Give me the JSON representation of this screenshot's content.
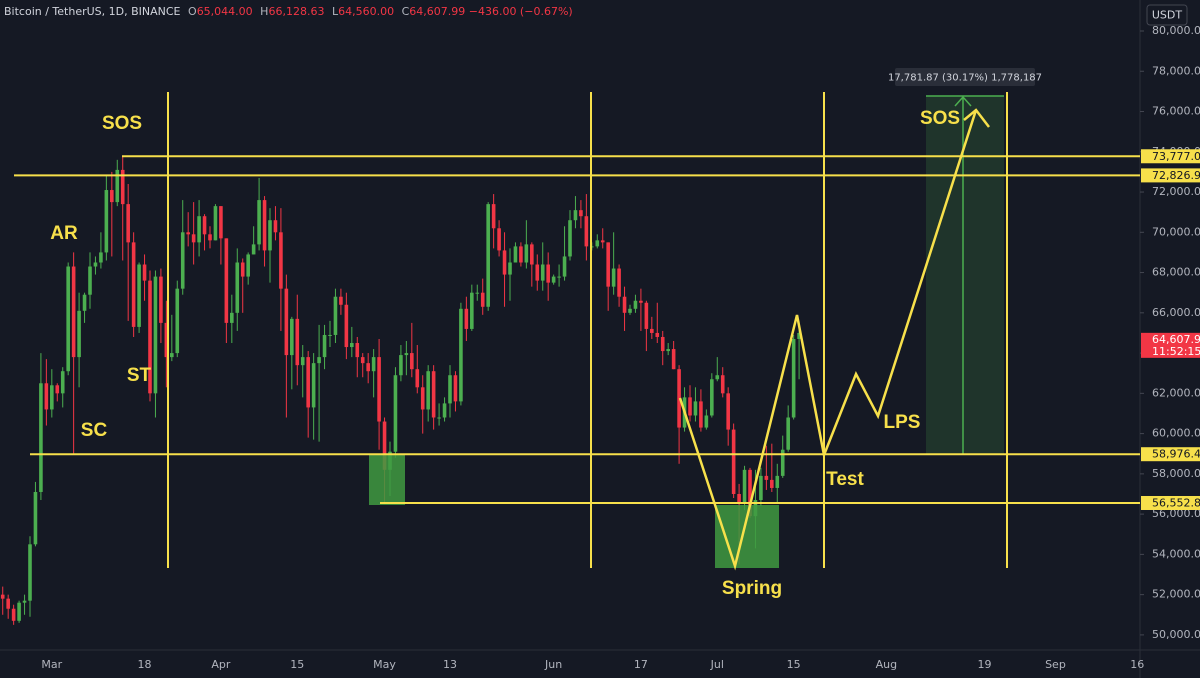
{
  "header": {
    "symbol": "Bitcoin / TetherUS, 1D, BINANCE",
    "ohlc": [
      {
        "key": "O",
        "value": "65,044.00"
      },
      {
        "key": "H",
        "value": "66,128.63"
      },
      {
        "key": "L",
        "value": "64,560.00"
      },
      {
        "key": "C",
        "value": "64,607.99"
      }
    ],
    "change": "−436.00 (−0.67%)",
    "currency": "USDT"
  },
  "chart_data": {
    "type": "candlestick",
    "up_color": "#4caf50",
    "down_color": "#f23645",
    "categories": [
      null,
      null,
      null,
      null,
      null,
      null,
      null,
      null,
      null,
      "Mar",
      null,
      null,
      null,
      null,
      null,
      null,
      null,
      null,
      null,
      null,
      null,
      null,
      null,
      null,
      null,
      null,
      "18",
      null,
      null,
      null,
      null,
      null,
      null,
      null,
      null,
      null,
      null,
      null,
      null,
      null,
      "Apr",
      null,
      null,
      null,
      null,
      null,
      null,
      null,
      null,
      null,
      null,
      null,
      null,
      null,
      "15",
      null,
      null,
      null,
      null,
      null,
      null,
      null,
      null,
      null,
      null,
      null,
      null,
      null,
      null,
      null,
      "May",
      null,
      null,
      null,
      null,
      null,
      null,
      null,
      null,
      null,
      null,
      null,
      "13",
      null,
      null,
      null,
      null,
      null,
      null,
      null,
      null,
      null,
      null,
      null,
      null,
      null,
      null,
      null,
      null,
      null,
      null,
      "Jun",
      null,
      null,
      null,
      null,
      null,
      null,
      null,
      null,
      null,
      null,
      null,
      null,
      null,
      null,
      null,
      "17",
      null,
      null,
      null,
      null,
      null,
      null,
      null,
      null,
      null,
      null,
      null,
      null,
      null,
      "Jul",
      null,
      null,
      null,
      null,
      null,
      null,
      null,
      null,
      null,
      null,
      null,
      null,
      null,
      "15",
      null,
      null,
      null,
      null,
      null,
      null,
      null,
      null,
      null,
      null,
      null,
      null,
      null,
      null,
      null,
      null,
      "Aug",
      null,
      null,
      null,
      null,
      null,
      null,
      null,
      null,
      null,
      null,
      null,
      null,
      null,
      null,
      null,
      null,
      null,
      "19",
      null,
      null,
      null,
      null,
      null,
      null,
      null,
      null,
      null,
      null,
      null,
      null,
      "Sep",
      null,
      null,
      null,
      null,
      null,
      null,
      null,
      null,
      null,
      null,
      null,
      null,
      null,
      null,
      "16"
    ],
    "open": [
      52000,
      51800,
      51300,
      50700,
      51600,
      51700,
      54500,
      57100,
      62500,
      61200,
      62400,
      62000,
      63100,
      68300,
      63800,
      66100,
      66900,
      68300,
      68500,
      69000,
      72100,
      71500,
      73100,
      71400,
      69500,
      65300,
      68400,
      67600,
      62000,
      67800,
      65500,
      63800,
      64000,
      67200,
      70000,
      69900,
      69500,
      70800,
      69900,
      69600,
      71300,
      69700,
      65500,
      66000,
      68500,
      67800,
      68900,
      69400,
      71600,
      69100,
      70600,
      70000,
      67200,
      63900,
      65700,
      63400,
      63800,
      61300,
      63500,
      63800,
      64900,
      64900,
      66800,
      66400,
      64300,
      64500,
      63800,
      63500,
      63100,
      63800,
      60600,
      58200,
      59100,
      62900,
      63900,
      64000,
      63200,
      62300,
      61200,
      63100,
      60800,
      60800,
      61500,
      62900,
      61600,
      66200,
      65200,
      67000,
      67000,
      66300,
      71400,
      70200,
      69100,
      67900,
      68500,
      69300,
      68500,
      69400,
      68400,
      67600,
      68400,
      67500,
      67800,
      67800,
      68800,
      70600,
      71100,
      70800,
      69300,
      69300,
      69600,
      69500,
      67300,
      68200,
      66800,
      66000,
      66200,
      66600,
      66500,
      65200,
      65000,
      64800,
      64100,
      64200,
      63200,
      60300,
      61800,
      60900,
      61600,
      60300,
      60900,
      62700,
      62900,
      62000,
      60200,
      57000,
      56600,
      58200,
      55900,
      56700,
      57900,
      57700,
      57300,
      57900,
      59200,
      60800,
      64700,
      null,
      null,
      null,
      null,
      null,
      null,
      null,
      null,
      null,
      null,
      null,
      null,
      null,
      null,
      null,
      null,
      null,
      null,
      null,
      null,
      null,
      null,
      null,
      null,
      null,
      null,
      null,
      null,
      null,
      null,
      null,
      null,
      null,
      null,
      null,
      null,
      null,
      null,
      null,
      null,
      null,
      null,
      null,
      null,
      null,
      null,
      null,
      null,
      null,
      null,
      null,
      null,
      null,
      null,
      null,
      null,
      null,
      null,
      null,
      null,
      null,
      null
    ],
    "high": [
      52400,
      52000,
      51500,
      51700,
      52000,
      54900,
      57600,
      64000,
      63700,
      63200,
      62500,
      63300,
      68500,
      69000,
      67000,
      67000,
      69000,
      68800,
      70000,
      72800,
      73000,
      73600,
      73800,
      72400,
      70000,
      68500,
      68900,
      68100,
      68100,
      68200,
      66600,
      65900,
      67600,
      71600,
      71000,
      71500,
      71600,
      70900,
      70300,
      71400,
      71300,
      69700,
      66900,
      69200,
      68700,
      69000,
      70300,
      72700,
      71800,
      71200,
      71300,
      71200,
      67900,
      65800,
      66900,
      64400,
      64100,
      64000,
      65400,
      65400,
      65600,
      67200,
      67200,
      67000,
      65300,
      64800,
      64000,
      64000,
      64200,
      64700,
      60800,
      59600,
      63300,
      64400,
      64600,
      65500,
      64400,
      62900,
      63400,
      63400,
      61500,
      61800,
      63400,
      63100,
      66500,
      66800,
      67400,
      67400,
      67700,
      71500,
      71900,
      70600,
      70000,
      69200,
      69500,
      69500,
      70600,
      69500,
      68900,
      69500,
      69000,
      67900,
      68400,
      70300,
      71100,
      71800,
      71600,
      71900,
      69500,
      69900,
      70200,
      69500,
      70000,
      68400,
      67300,
      66400,
      66900,
      67200,
      66600,
      65800,
      66500,
      65100,
      64500,
      64600,
      63400,
      62300,
      62400,
      62300,
      62200,
      61200,
      63000,
      63800,
      63300,
      62300,
      60500,
      57500,
      58400,
      58300,
      58200,
      58300,
      59400,
      59500,
      58500,
      59900,
      61400,
      64900,
      65400,
      null,
      null,
      null,
      null,
      null,
      null,
      null,
      null,
      null,
      null,
      null,
      null,
      null,
      null,
      null,
      null,
      null,
      null,
      null,
      null,
      null,
      null,
      null,
      null,
      null,
      null,
      null,
      null,
      null,
      null,
      null,
      null,
      null,
      null,
      null,
      null,
      null,
      null,
      null,
      null,
      null,
      null,
      null,
      null,
      null,
      null,
      null,
      null,
      null,
      null,
      null,
      null,
      null,
      null,
      null,
      null,
      null,
      null,
      null,
      null,
      null,
      null
    ],
    "low": [
      51000,
      50800,
      50500,
      50600,
      51000,
      50900,
      54400,
      56700,
      60400,
      60800,
      61600,
      61300,
      62900,
      59000,
      62300,
      65500,
      66200,
      67900,
      68200,
      68600,
      68800,
      71300,
      68600,
      65600,
      64800,
      65000,
      66600,
      61600,
      60800,
      64500,
      62300,
      63600,
      63800,
      66900,
      69300,
      68400,
      68800,
      69100,
      69200,
      69600,
      68400,
      64500,
      64500,
      65100,
      66000,
      67400,
      68900,
      69100,
      68300,
      67500,
      69600,
      65100,
      60800,
      62200,
      62400,
      61800,
      59800,
      59700,
      59600,
      63200,
      64300,
      64500,
      65900,
      63700,
      63800,
      62800,
      62800,
      62500,
      61800,
      59200,
      56600,
      56900,
      58800,
      62600,
      62900,
      62800,
      62000,
      60000,
      60600,
      60200,
      60400,
      60600,
      60800,
      61100,
      61400,
      64600,
      65100,
      66600,
      65900,
      66100,
      69200,
      68800,
      66300,
      66600,
      68500,
      68300,
      68200,
      67300,
      67100,
      67100,
      66600,
      67400,
      67300,
      67600,
      68600,
      70200,
      70200,
      68600,
      69100,
      69200,
      69200,
      66100,
      66900,
      66300,
      65100,
      65900,
      66000,
      65100,
      64100,
      64700,
      64500,
      63400,
      63900,
      63200,
      58500,
      60100,
      60600,
      60600,
      60100,
      60200,
      60800,
      62600,
      61800,
      59400,
      56800,
      53500,
      56200,
      55800,
      54300,
      56400,
      57200,
      57100,
      56600,
      57800,
      59100,
      60700,
      62700,
      null,
      null,
      null,
      null,
      null,
      null,
      null,
      null,
      null,
      null,
      null,
      null,
      null,
      null,
      null,
      null,
      null,
      null,
      null,
      null,
      null,
      null,
      null,
      null,
      null,
      null,
      null,
      null,
      null,
      null,
      null,
      null,
      null,
      null,
      null,
      null,
      null,
      null,
      null,
      null,
      null,
      null,
      null,
      null,
      null,
      null,
      null,
      null,
      null,
      null,
      null,
      null,
      null,
      null,
      null,
      null,
      null,
      null,
      null,
      null,
      null,
      null
    ],
    "close": [
      51800,
      51300,
      50700,
      51600,
      51700,
      54500,
      57100,
      62500,
      61200,
      62400,
      62000,
      63100,
      68300,
      63800,
      66100,
      66900,
      68300,
      68500,
      69000,
      72100,
      71500,
      73100,
      71400,
      69500,
      65300,
      68400,
      67600,
      62000,
      67800,
      65500,
      63800,
      64000,
      67200,
      70000,
      69900,
      69500,
      70800,
      69900,
      69600,
      71300,
      69700,
      65500,
      66000,
      68500,
      67800,
      68900,
      69400,
      71600,
      69100,
      70600,
      70000,
      67200,
      63900,
      65700,
      63400,
      63800,
      61300,
      63500,
      63800,
      64900,
      64900,
      66800,
      66400,
      64300,
      64500,
      63800,
      63500,
      63100,
      63800,
      60600,
      58200,
      59100,
      62900,
      63900,
      64000,
      63200,
      62300,
      61200,
      63100,
      60800,
      60800,
      61500,
      62900,
      61600,
      66200,
      65200,
      67000,
      67000,
      66300,
      71400,
      70200,
      69100,
      67900,
      68500,
      69300,
      68500,
      69400,
      68400,
      67600,
      68400,
      67500,
      67800,
      67800,
      68800,
      70600,
      71100,
      70800,
      69300,
      69300,
      69600,
      69500,
      67300,
      68200,
      66800,
      66000,
      66200,
      66600,
      66500,
      65200,
      65000,
      64800,
      64100,
      64200,
      63200,
      60300,
      61800,
      60900,
      61600,
      60300,
      60900,
      62700,
      62900,
      62000,
      60200,
      57000,
      56600,
      58200,
      55900,
      56700,
      57900,
      57700,
      57300,
      57900,
      59200,
      60800,
      64700,
      65000,
      null,
      null,
      null,
      null,
      null,
      null,
      null,
      null,
      null,
      null,
      null,
      null,
      null,
      null,
      null,
      null,
      null,
      null,
      null,
      null,
      null,
      null,
      null,
      null,
      null,
      null,
      null,
      null,
      null,
      null,
      null,
      null,
      null,
      null,
      null,
      null,
      null,
      null,
      null,
      null,
      null,
      null,
      null,
      null,
      null,
      null,
      null,
      null,
      null,
      null,
      null,
      null,
      null,
      null,
      null,
      null,
      null,
      null,
      null,
      null,
      null,
      null
    ],
    "ylim": [
      49250,
      81540
    ],
    "yticks": [
      {
        "value": 50000,
        "label": "50,000.00"
      },
      {
        "value": 52000,
        "label": "52,000.00"
      },
      {
        "value": 54000,
        "label": "54,000.00"
      },
      {
        "value": 56000,
        "label": "56,000.00"
      },
      {
        "value": 58000,
        "label": "58,000.00"
      },
      {
        "value": 60000,
        "label": "60,000.00"
      },
      {
        "value": 62000,
        "label": "62,000.00"
      },
      {
        "value": 64000,
        "label": "64,000.00"
      },
      {
        "value": 66000,
        "label": "66,000.00"
      },
      {
        "value": 68000,
        "label": "68,000.00"
      },
      {
        "value": 70000,
        "label": "70,000.00"
      },
      {
        "value": 72000,
        "label": "72,000.00"
      },
      {
        "value": 74000,
        "label": "74,000.00"
      },
      {
        "value": 76000,
        "label": "76,000.00"
      },
      {
        "value": 78000,
        "label": "78,000.00"
      },
      {
        "value": 80000,
        "label": "80,000.00"
      }
    ],
    "levels": [
      {
        "value": 73777,
        "label": "73,777.00"
      },
      {
        "value": 72826.92,
        "label": "72,826.92"
      },
      {
        "value": 58976.41,
        "label": "58,976.41"
      },
      {
        "value": 56552.82,
        "label": "56,552.82"
      }
    ],
    "level_color": "#f7e04b",
    "current_price": {
      "value": 64607.99,
      "label": "64,607.99",
      "countdown": "11:52:15"
    },
    "annotations": [
      "SOS",
      "AR",
      "ST",
      "SC",
      "Spring",
      "Test",
      "LPS",
      "SOS"
    ],
    "measure": "17,781.87 (30.17%) 1,778,187"
  }
}
